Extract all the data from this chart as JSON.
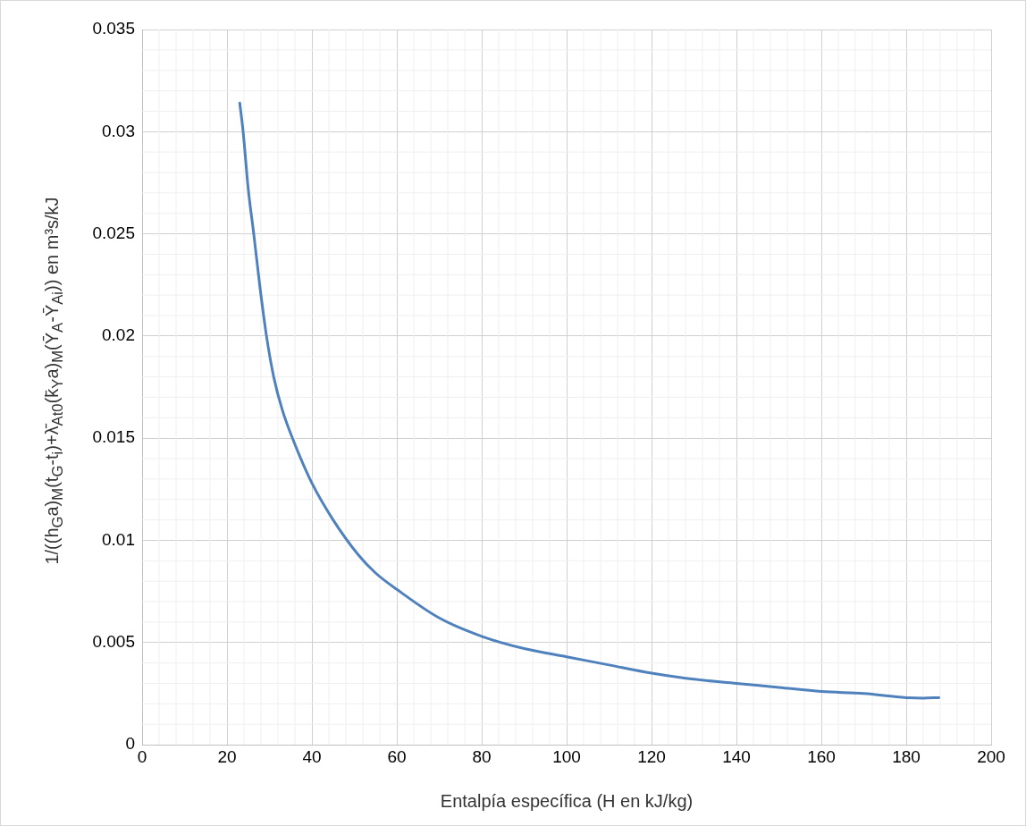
{
  "chart_data": {
    "type": "line",
    "xlabel": "Entalpía específica (H en kJ/kg)",
    "ylabel": "1/((h$_{G}$a)$_{M}$(t$_{G}$-t$_{i}$)+λ̄$_{At0}$(k̄$_{Y}$a)$_{M}$(Ȳ$_{A}$-Ȳ$_{Ai}$)) en m³s/kJ",
    "series": [
      {
        "color": "#4f81bd",
        "x": [
          23,
          23.8,
          25,
          26.3,
          27.7,
          29.3,
          31,
          33,
          35.8,
          40,
          45,
          50.9,
          55,
          60,
          70,
          80,
          90,
          100,
          110,
          120,
          130,
          140,
          150,
          160,
          170,
          180,
          184,
          187.7
        ],
        "values": [
          0.0314,
          0.03,
          0.0272,
          0.025,
          0.0225,
          0.02,
          0.018,
          0.0164,
          0.0148,
          0.0128,
          0.011,
          0.0093,
          0.0084,
          0.0076,
          0.0062,
          0.0053,
          0.0047,
          0.0043,
          0.0039,
          0.0035,
          0.0032,
          0.003,
          0.0028,
          0.0026,
          0.0025,
          0.0023,
          0.00228,
          0.0023
        ]
      }
    ],
    "xlim": [
      0,
      200
    ],
    "xticks": [
      0,
      20,
      40,
      60,
      80,
      100,
      120,
      140,
      160,
      180,
      200
    ],
    "ylim": [
      0,
      0.035
    ],
    "yticks": [
      0,
      0.005,
      0.01,
      0.015,
      0.02,
      0.025,
      0.03,
      0.035
    ],
    "grid": true,
    "legend": false,
    "marker": "none",
    "line_style": "solid"
  }
}
